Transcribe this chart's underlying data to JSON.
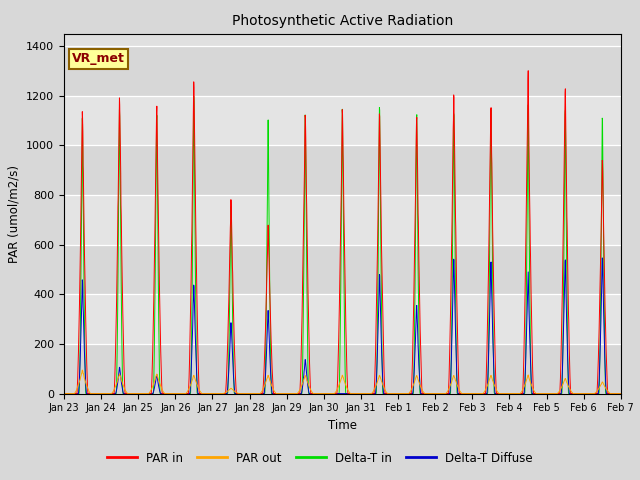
{
  "title": "Photosynthetic Active Radiation",
  "xlabel": "Time",
  "ylabel": "PAR (umol/m2/s)",
  "ylim": [
    0,
    1450
  ],
  "yticks": [
    0,
    200,
    400,
    600,
    800,
    1000,
    1200,
    1400
  ],
  "xtick_labels": [
    "Jan 23",
    "Jan 24",
    "Jan 25",
    "Jan 26",
    "Jan 27",
    "Jan 28",
    "Jan 29",
    "Jan 30",
    "Jan 31",
    "Feb 1",
    "Feb 2",
    "Feb 3",
    "Feb 4",
    "Feb 5",
    "Feb 6",
    "Feb 7"
  ],
  "series_colors": {
    "PAR in": "#ff0000",
    "PAR out": "#ffa500",
    "Delta-T in": "#00dd00",
    "Delta-T Diffuse": "#0000cc"
  },
  "legend_label": "VR_met",
  "fig_bg_color": "#d8d8d8",
  "plot_bg_color": "#e0e0e0",
  "daily_peaks": {
    "PAR_in": [
      1150,
      1220,
      1190,
      1290,
      810,
      700,
      1170,
      1170,
      1160,
      1160,
      1250,
      1190,
      1310,
      1260,
      975
    ],
    "PAR_out": [
      95,
      80,
      80,
      75,
      22,
      75,
      75,
      75,
      75,
      75,
      75,
      75,
      75,
      62,
      48
    ],
    "DeltaT_in": [
      1150,
      1200,
      1180,
      1260,
      800,
      1165,
      1200,
      1200,
      1215,
      1200,
      1200,
      1210,
      1200,
      1200,
      1180
    ],
    "DeltaT_diff": [
      470,
      110,
      80,
      455,
      300,
      350,
      145,
      0,
      500,
      375,
      570,
      555,
      500,
      560,
      575
    ]
  },
  "pts_per_day": 144,
  "num_days": 15
}
